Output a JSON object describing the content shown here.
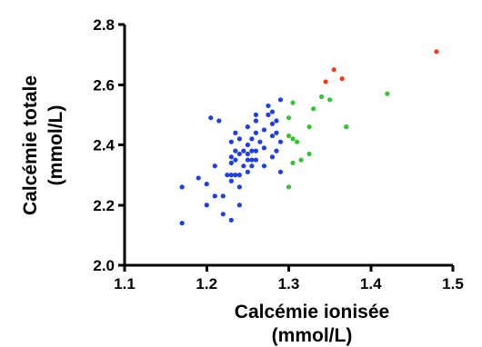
{
  "chart_data": {
    "type": "scatter",
    "xlabel": [
      "Calcémie ionisée",
      "(mmol/L)"
    ],
    "ylabel": [
      "Calcémie totale",
      "(mmol/L)"
    ],
    "xlim": [
      1.1,
      1.5
    ],
    "ylim": [
      2.0,
      2.8
    ],
    "x_ticks": [
      1.1,
      1.2,
      1.3,
      1.4,
      1.5
    ],
    "x_tick_labels": [
      "1.1",
      "1.2",
      "1.3",
      "1.4",
      "1.5"
    ],
    "y_ticks": [
      2.0,
      2.2,
      2.4,
      2.6,
      2.8
    ],
    "y_tick_labels": [
      "2.0",
      "2.2",
      "2.4",
      "2.6",
      "2.8"
    ],
    "grid": false,
    "legend": "none",
    "series": [
      {
        "color": "#1f3fe6",
        "x": [
          1.17,
          1.17,
          1.19,
          1.2,
          1.2,
          1.205,
          1.21,
          1.21,
          1.215,
          1.22,
          1.22,
          1.225,
          1.23,
          1.23,
          1.23,
          1.23,
          1.23,
          1.23,
          1.235,
          1.235,
          1.235,
          1.235,
          1.24,
          1.24,
          1.24,
          1.24,
          1.24,
          1.245,
          1.245,
          1.25,
          1.25,
          1.25,
          1.25,
          1.25,
          1.255,
          1.255,
          1.255,
          1.255,
          1.26,
          1.26,
          1.26,
          1.26,
          1.26,
          1.265,
          1.27,
          1.27,
          1.27,
          1.275,
          1.275,
          1.28,
          1.28,
          1.28,
          1.28,
          1.285,
          1.285,
          1.285,
          1.29,
          1.29,
          1.29
        ],
        "y": [
          2.26,
          2.14,
          2.29,
          2.27,
          2.2,
          2.49,
          2.33,
          2.23,
          2.48,
          2.23,
          2.17,
          2.3,
          2.15,
          2.28,
          2.3,
          2.34,
          2.36,
          2.41,
          2.3,
          2.35,
          2.38,
          2.44,
          2.2,
          2.26,
          2.3,
          2.37,
          2.42,
          2.33,
          2.38,
          2.31,
          2.35,
          2.37,
          2.4,
          2.46,
          2.33,
          2.35,
          2.38,
          2.42,
          2.35,
          2.38,
          2.44,
          2.48,
          2.5,
          2.41,
          2.33,
          2.39,
          2.45,
          2.5,
          2.53,
          2.36,
          2.43,
          2.47,
          2.51,
          2.38,
          2.44,
          2.48,
          2.31,
          2.41,
          2.55
        ]
      },
      {
        "color": "#33c433",
        "x": [
          1.3,
          1.3,
          1.3,
          1.305,
          1.305,
          1.305,
          1.31,
          1.315,
          1.325,
          1.325,
          1.33,
          1.34,
          1.35,
          1.37,
          1.42
        ],
        "y": [
          2.26,
          2.43,
          2.49,
          2.34,
          2.42,
          2.54,
          2.41,
          2.35,
          2.37,
          2.46,
          2.52,
          2.56,
          2.55,
          2.46,
          2.57
        ]
      },
      {
        "color": "#f23a1a",
        "x": [
          1.345,
          1.355,
          1.365,
          1.48
        ],
        "y": [
          2.61,
          2.65,
          2.62,
          2.71
        ]
      }
    ]
  }
}
